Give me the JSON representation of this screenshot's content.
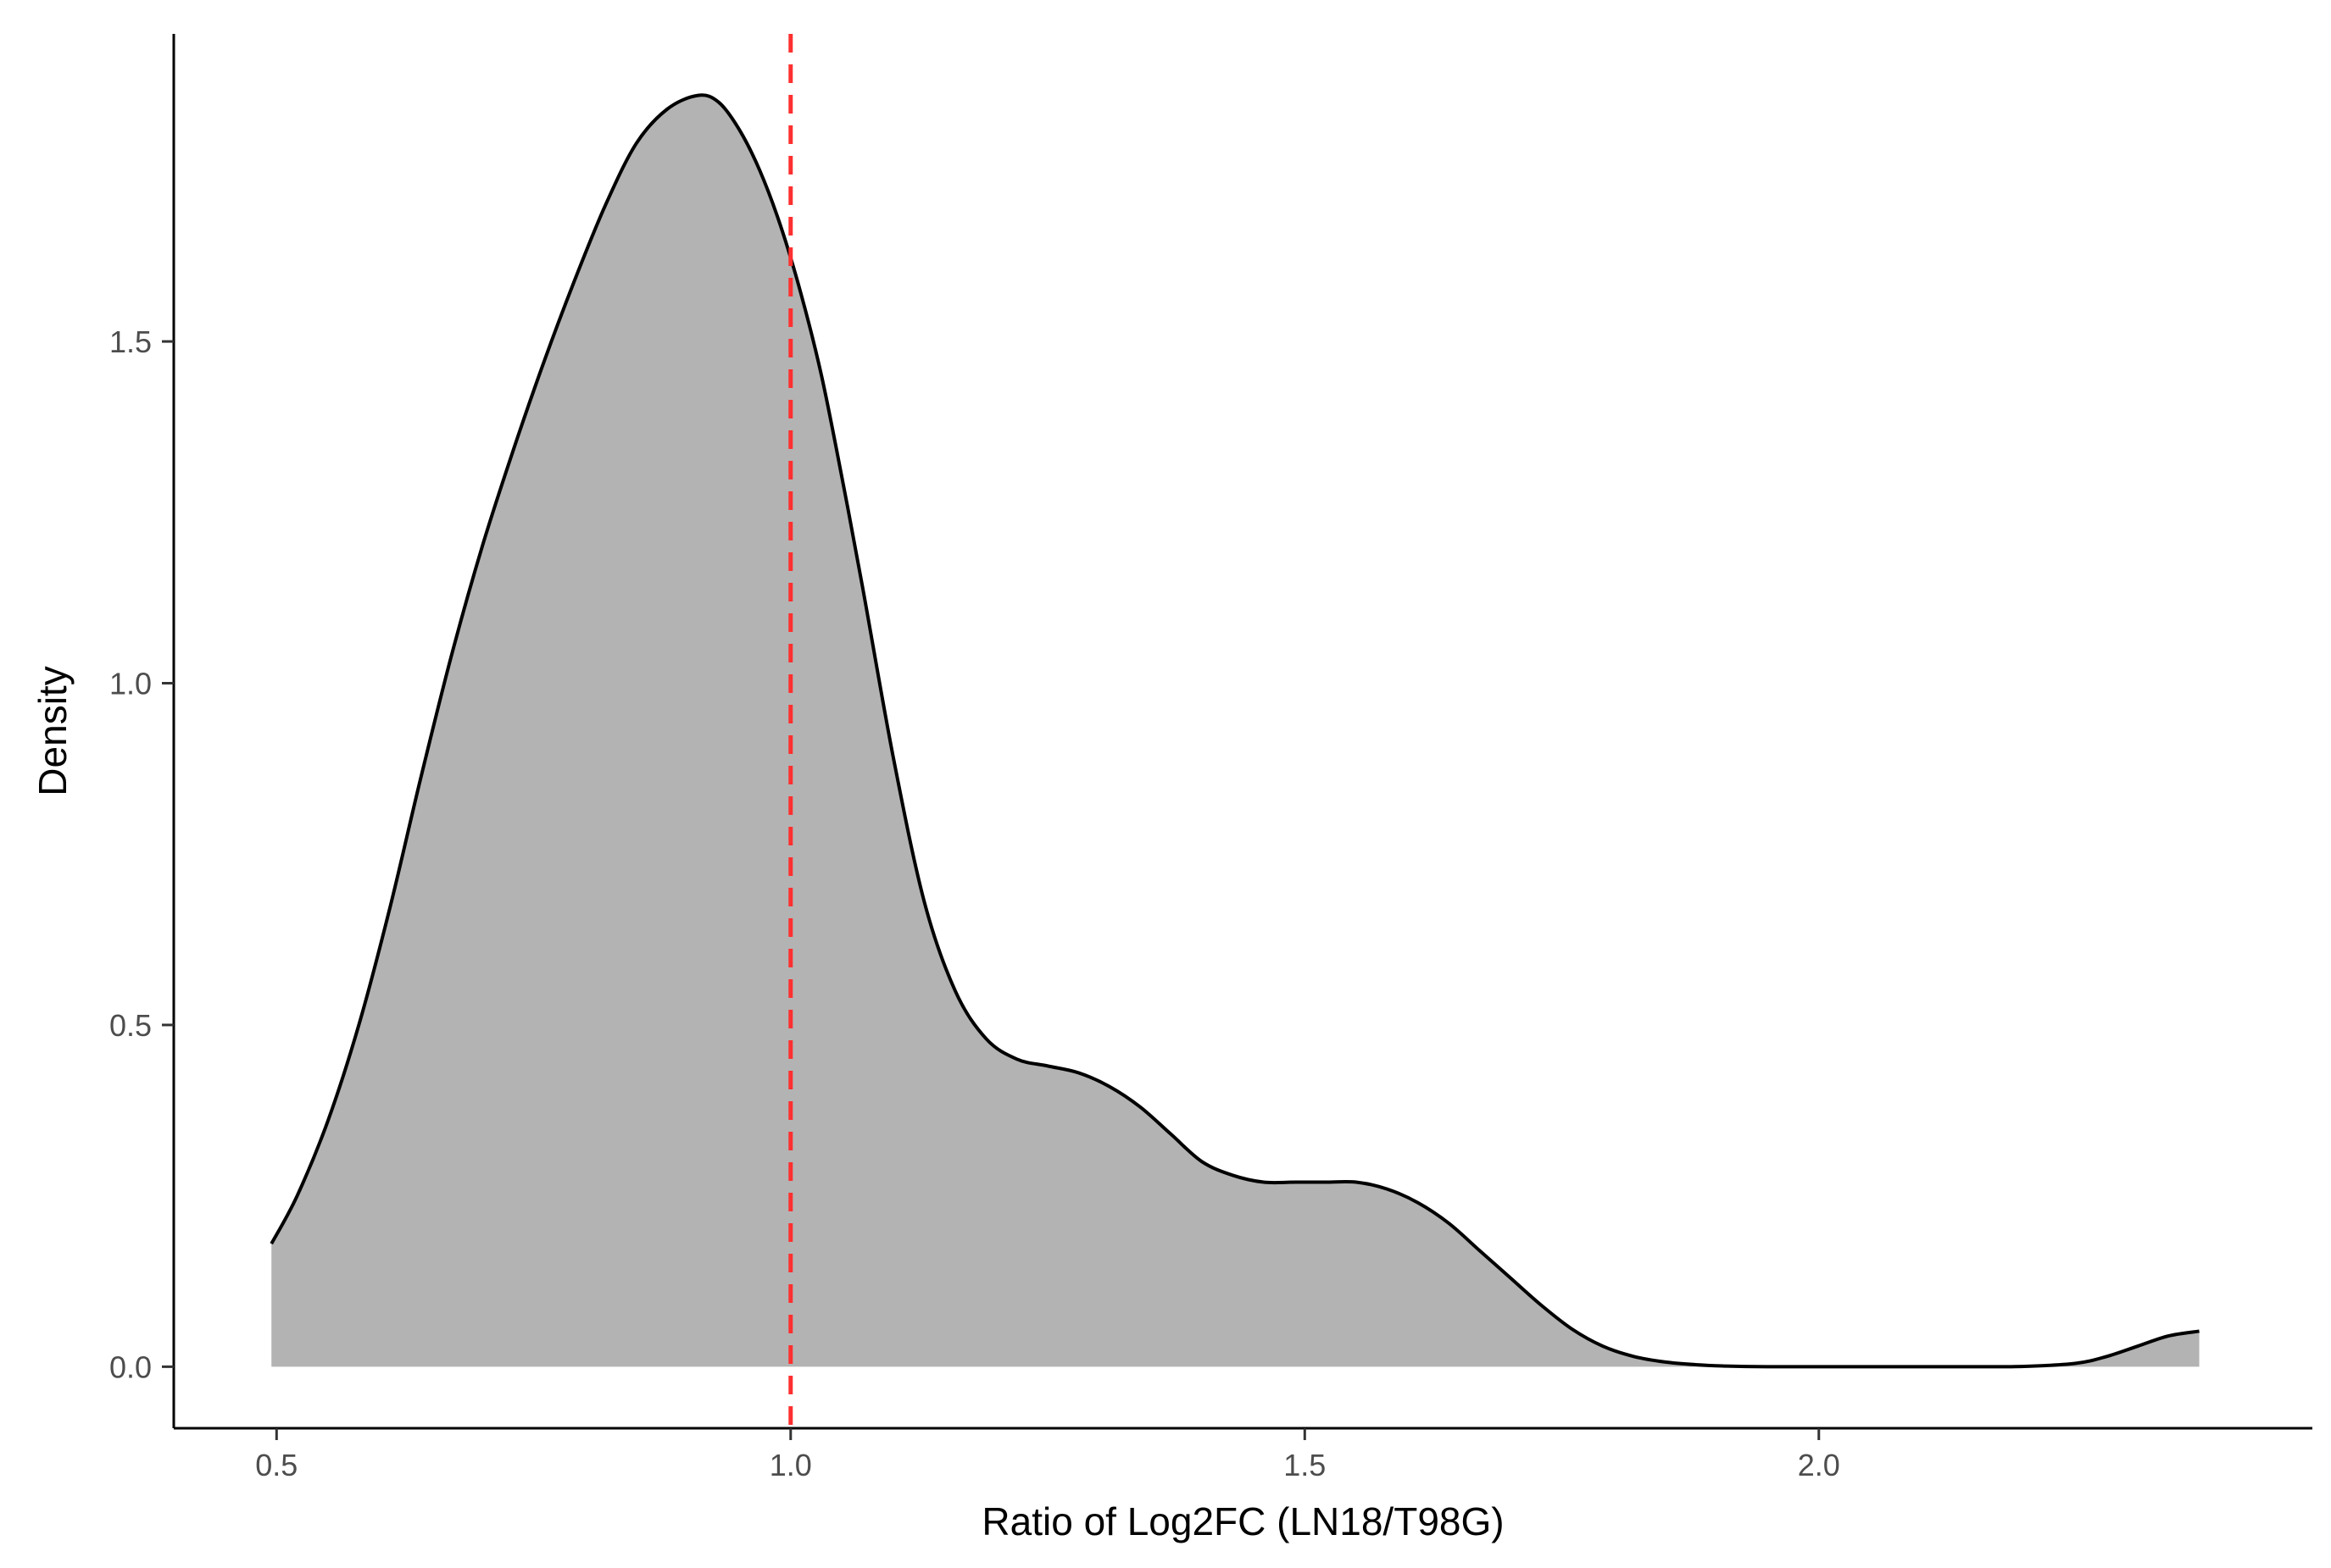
{
  "chart_data": {
    "type": "area",
    "title": "",
    "xlabel": "Ratio of Log2FC (LN18/T98G)",
    "ylabel": "Density",
    "xlim": [
      0.4,
      2.48
    ],
    "ylim": [
      -0.09,
      1.95
    ],
    "x_ticks": [
      0.5,
      1.0,
      1.5,
      2.0
    ],
    "x_tick_labels": [
      "0.5",
      "1.0",
      "1.5",
      "2.0"
    ],
    "y_ticks": [
      0.0,
      0.5,
      1.0,
      1.5
    ],
    "y_tick_labels": [
      "0.0",
      "0.5",
      "1.0",
      "1.5"
    ],
    "grid": false,
    "legend": "none",
    "fill_color": "#b3b3b3",
    "line_color": "#000000",
    "reference_line": {
      "x": 1.0,
      "style": "dashed",
      "color": "#ff3030"
    },
    "series": [
      {
        "x": [
          0.495,
          0.52,
          0.55,
          0.58,
          0.61,
          0.64,
          0.67,
          0.7,
          0.73,
          0.76,
          0.79,
          0.82,
          0.85,
          0.88,
          0.91,
          0.93,
          0.95,
          0.97,
          0.99,
          1.01,
          1.03,
          1.05,
          1.07,
          1.1,
          1.13,
          1.16,
          1.19,
          1.22,
          1.25,
          1.28,
          1.31,
          1.34,
          1.37,
          1.4,
          1.43,
          1.46,
          1.49,
          1.52,
          1.55,
          1.58,
          1.61,
          1.64,
          1.67,
          1.7,
          1.73,
          1.76,
          1.79,
          1.82,
          1.85,
          1.88,
          1.91,
          1.95,
          2.0,
          2.05,
          2.1,
          2.15,
          2.2,
          2.25,
          2.28,
          2.31,
          2.34,
          2.37
        ],
        "y": [
          0.18,
          0.25,
          0.36,
          0.5,
          0.67,
          0.86,
          1.04,
          1.2,
          1.34,
          1.47,
          1.59,
          1.7,
          1.79,
          1.84,
          1.86,
          1.85,
          1.81,
          1.75,
          1.67,
          1.57,
          1.45,
          1.3,
          1.14,
          0.89,
          0.68,
          0.55,
          0.48,
          0.45,
          0.44,
          0.43,
          0.41,
          0.38,
          0.34,
          0.3,
          0.28,
          0.27,
          0.27,
          0.27,
          0.27,
          0.26,
          0.24,
          0.21,
          0.17,
          0.13,
          0.09,
          0.055,
          0.03,
          0.015,
          0.007,
          0.003,
          0.001,
          0.0,
          0.0,
          0.0,
          0.0,
          0.0,
          0.0005,
          0.005,
          0.015,
          0.03,
          0.045,
          0.052
        ]
      }
    ]
  }
}
